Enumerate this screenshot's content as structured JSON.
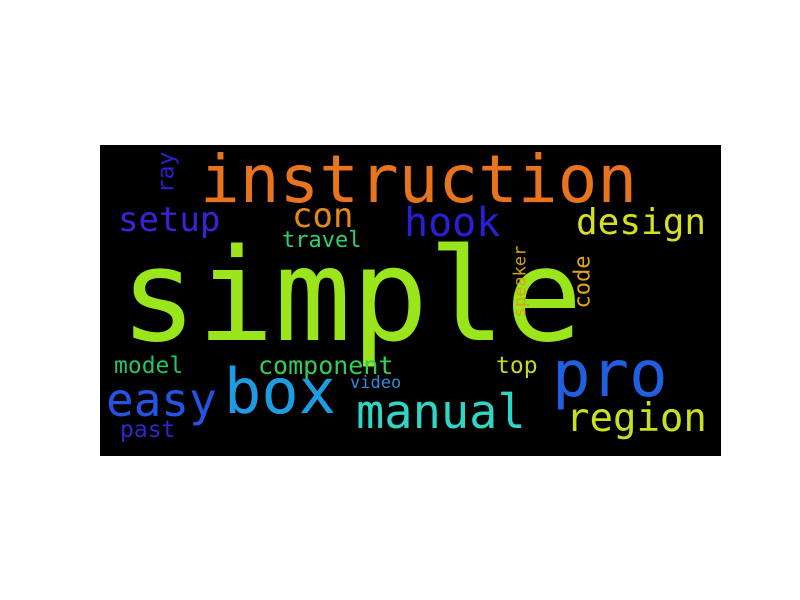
{
  "word_cloud": {
    "words": [
      {
        "text": "simple",
        "color": "#9ae51b"
      },
      {
        "text": "instruction",
        "color": "#e8741e"
      },
      {
        "text": "box",
        "color": "#1f9be4"
      },
      {
        "text": "pro",
        "color": "#1f5fe0"
      },
      {
        "text": "manual",
        "color": "#2fd6c6"
      },
      {
        "text": "region",
        "color": "#c8e020"
      },
      {
        "text": "easy",
        "color": "#2455e0"
      },
      {
        "text": "hook",
        "color": "#2a1fd8"
      },
      {
        "text": "design",
        "color": "#d6e01e"
      },
      {
        "text": "setup",
        "color": "#3a22d8"
      },
      {
        "text": "con",
        "color": "#e08a18"
      },
      {
        "text": "component",
        "color": "#33cc55"
      },
      {
        "text": "travel",
        "color": "#2ccf72"
      },
      {
        "text": "model",
        "color": "#22c466"
      },
      {
        "text": "top",
        "color": "#c8d81a"
      },
      {
        "text": "past",
        "color": "#3424cc"
      },
      {
        "text": "video",
        "color": "#2a8de0"
      },
      {
        "text": "ray",
        "color": "#2a20c8"
      },
      {
        "text": "code",
        "color": "#e0a418"
      },
      {
        "text": "speaker",
        "color": "#d8a218"
      }
    ]
  }
}
